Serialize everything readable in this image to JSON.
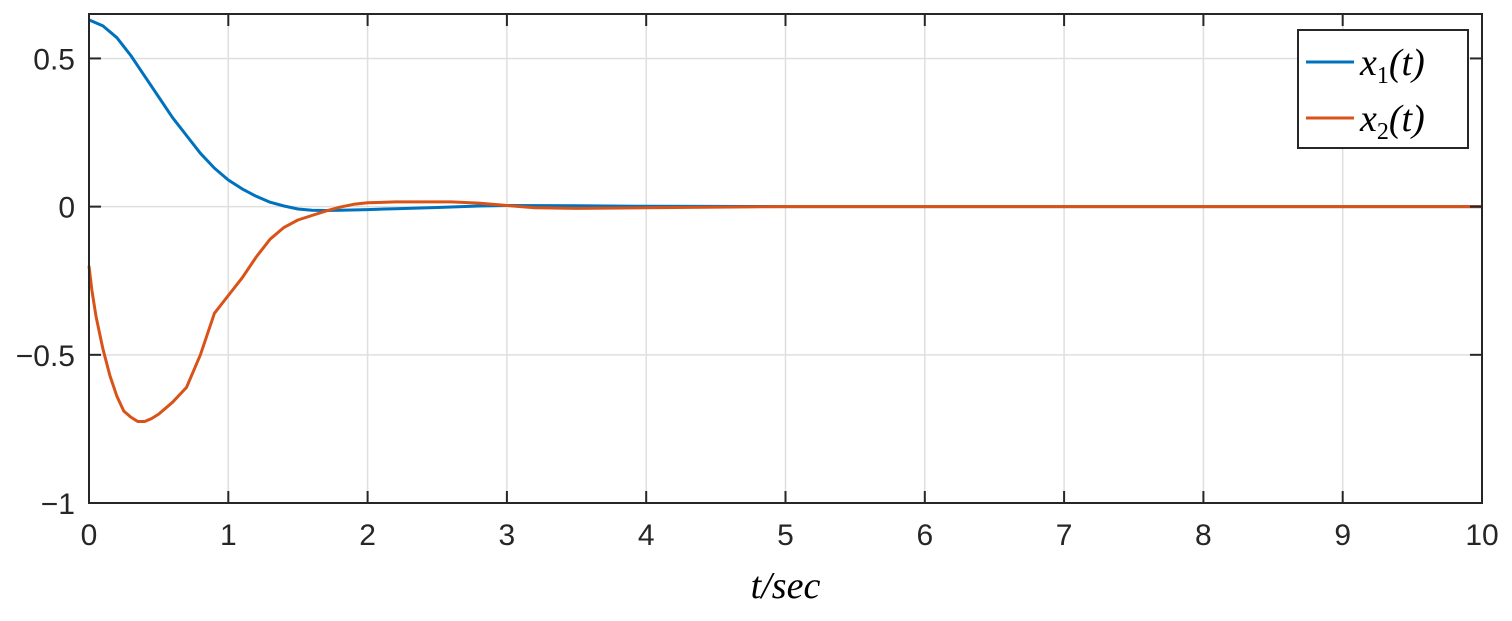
{
  "chart_data": {
    "type": "line",
    "title": "",
    "xlabel": "t/sec",
    "ylabel": "",
    "xlim": [
      0,
      10
    ],
    "ylim": [
      -1,
      0.65
    ],
    "xticks": [
      0,
      1,
      2,
      3,
      4,
      5,
      6,
      7,
      8,
      9,
      10
    ],
    "xtick_labels": [
      "0",
      "1",
      "2",
      "3",
      "4",
      "5",
      "6",
      "7",
      "8",
      "9",
      "10"
    ],
    "yticks": [
      -1,
      -0.5,
      0,
      0.5
    ],
    "ytick_labels": [
      "−1",
      "−0.5",
      "0",
      "0.5"
    ],
    "grid": true,
    "legend_position": "top-right",
    "series": [
      {
        "name": "x1(t)",
        "legend_base": "x",
        "legend_sub": "1",
        "legend_arg": "(t)",
        "color": "#0072BD",
        "x": [
          0,
          0.1,
          0.2,
          0.3,
          0.4,
          0.5,
          0.6,
          0.7,
          0.8,
          0.9,
          1.0,
          1.1,
          1.2,
          1.3,
          1.4,
          1.5,
          1.6,
          1.7,
          1.8,
          2.0,
          2.2,
          2.5,
          2.8,
          3.0,
          3.5,
          4.0,
          5.0,
          6.0,
          7.0,
          8.0,
          9.0,
          10.0
        ],
        "y": [
          0.63,
          0.61,
          0.57,
          0.51,
          0.44,
          0.37,
          0.3,
          0.24,
          0.18,
          0.13,
          0.09,
          0.06,
          0.035,
          0.015,
          0.002,
          -0.008,
          -0.012,
          -0.013,
          -0.012,
          -0.01,
          -0.007,
          -0.003,
          0.002,
          0.004,
          0.003,
          0.001,
          0,
          0,
          0,
          0,
          0,
          0
        ]
      },
      {
        "name": "x2(t)",
        "legend_base": "x",
        "legend_sub": "2",
        "legend_arg": "(t)",
        "color": "#D95319",
        "x": [
          0,
          0.02,
          0.05,
          0.1,
          0.15,
          0.2,
          0.25,
          0.3,
          0.35,
          0.4,
          0.45,
          0.5,
          0.55,
          0.6,
          0.7,
          0.8,
          0.9,
          1.0,
          1.1,
          1.2,
          1.3,
          1.4,
          1.5,
          1.6,
          1.7,
          1.8,
          1.9,
          2.0,
          2.2,
          2.4,
          2.6,
          2.8,
          3.0,
          3.2,
          3.5,
          4.0,
          5.0,
          6.0,
          7.0,
          8.0,
          9.0,
          10.0
        ],
        "y": [
          -0.2,
          -0.28,
          -0.37,
          -0.48,
          -0.57,
          -0.64,
          -0.69,
          -0.71,
          -0.725,
          -0.725,
          -0.715,
          -0.7,
          -0.68,
          -0.66,
          -0.61,
          -0.5,
          -0.36,
          -0.3,
          -0.24,
          -0.17,
          -0.11,
          -0.07,
          -0.045,
          -0.03,
          -0.015,
          -0.002,
          0.008,
          0.013,
          0.016,
          0.016,
          0.016,
          0.012,
          0.004,
          -0.004,
          -0.006,
          -0.004,
          0,
          0,
          0,
          0,
          0,
          0
        ]
      }
    ]
  }
}
